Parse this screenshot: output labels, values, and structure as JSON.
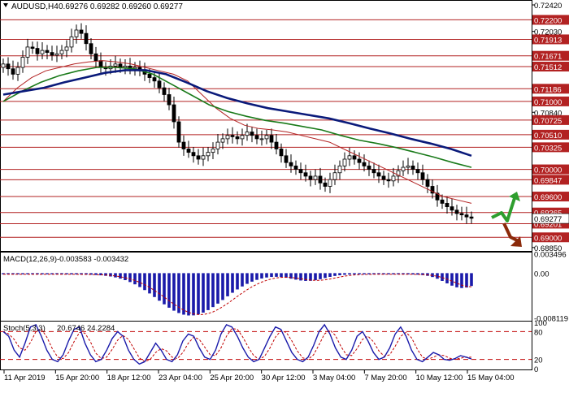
{
  "header": {
    "symbol": "AUDUSD,H4",
    "ohlc": "0.69276 0.69282 0.69260 0.69277"
  },
  "chart_data": [
    {
      "type": "candlestick",
      "title": "AUDUSD,H4",
      "ylim": [
        0.688,
        0.7248
      ],
      "tick_labels": [
        "0.72420",
        "0.72200",
        "0.72030",
        "0.71913",
        "0.71671",
        "0.71512",
        "0.71186",
        "0.71000",
        "0.70840",
        "0.70725",
        "0.70510",
        "0.70325",
        "0.70000",
        "0.69847",
        "0.69600",
        "0.69365",
        "0.69201",
        "0.68850"
      ],
      "levels": [
        0.722,
        0.71913,
        0.71671,
        0.71512,
        0.71186,
        0.71,
        0.70725,
        0.7051,
        0.70325,
        0.7,
        0.69847,
        0.696,
        0.69365,
        0.69201,
        0.69
      ],
      "level_labels": [
        "0.72200",
        "0.71913",
        "0.71671",
        "0.71512",
        "0.71186",
        "0.71000",
        "0.70725",
        "0.70510",
        "0.70325",
        "0.70000",
        "0.69847",
        "0.69600",
        "0.69365",
        "0.69201",
        "0.69000"
      ],
      "current_price": 0.69277,
      "current_price_label": "0.69277",
      "x_labels": [
        "11 Apr 2019",
        "15 Apr 20:00",
        "18 Apr 12:00",
        "23 Apr 04:00",
        "25 Apr 20:00",
        "30 Apr 12:00",
        "3 May 04:00",
        "7 May 20:00",
        "10 May 12:00",
        "15 May 04:00"
      ],
      "closes": [
        0.7155,
        0.7148,
        0.714,
        0.715,
        0.7165,
        0.718,
        0.7178,
        0.717,
        0.7175,
        0.7172,
        0.7168,
        0.717,
        0.7175,
        0.718,
        0.7195,
        0.7205,
        0.72,
        0.7185,
        0.717,
        0.716,
        0.715,
        0.7148,
        0.7152,
        0.7155,
        0.715,
        0.7152,
        0.7148,
        0.715,
        0.7145,
        0.714,
        0.7135,
        0.713,
        0.712,
        0.711,
        0.7095,
        0.707,
        0.704,
        0.703,
        0.7025,
        0.702,
        0.7015,
        0.702,
        0.7025,
        0.703,
        0.704,
        0.7045,
        0.705,
        0.7048,
        0.7045,
        0.705,
        0.7055,
        0.705,
        0.7045,
        0.7045,
        0.705,
        0.704,
        0.703,
        0.702,
        0.701,
        0.7005,
        0.7,
        0.6995,
        0.699,
        0.6985,
        0.699,
        0.698,
        0.6975,
        0.6985,
        0.6995,
        0.7005,
        0.7015,
        0.702,
        0.7015,
        0.701,
        0.7005,
        0.7,
        0.6995,
        0.699,
        0.6985,
        0.6983,
        0.699,
        0.6998,
        0.7003,
        0.7005,
        0.7,
        0.6995,
        0.6985,
        0.6975,
        0.6965,
        0.6955,
        0.695,
        0.6945,
        0.694,
        0.6935,
        0.6933,
        0.693,
        0.6928
      ],
      "series": [
        {
          "name": "",
          "color": "#b22222",
          "values": [
            0.71,
            0.712,
            0.7135,
            0.7145,
            0.715,
            0.7155,
            0.7158,
            0.716,
            0.7158,
            0.7155,
            0.715,
            0.7145,
            0.714,
            0.713,
            0.711,
            0.709,
            0.7075,
            0.7065,
            0.706,
            0.7058,
            0.7055,
            0.705,
            0.7045,
            0.704,
            0.703,
            0.702,
            0.701,
            0.7,
            0.699,
            0.698,
            0.697,
            0.696,
            0.6955,
            0.695
          ]
        },
        {
          "name": "",
          "color": "#1a7a1a",
          "values": [
            0.71,
            0.7115,
            0.7128,
            0.7138,
            0.7145,
            0.715,
            0.715,
            0.7148,
            0.714,
            0.7125,
            0.711,
            0.7095,
            0.7085,
            0.7078,
            0.7072,
            0.7068,
            0.7063,
            0.7058,
            0.705,
            0.7043,
            0.7038,
            0.7032,
            0.7025,
            0.7018,
            0.701,
            0.7003
          ]
        },
        {
          "name": "",
          "color": "#0a1a7a",
          "values": [
            0.711,
            0.7115,
            0.712,
            0.7128,
            0.7135,
            0.7142,
            0.7146,
            0.7146,
            0.714,
            0.7128,
            0.7115,
            0.7105,
            0.7097,
            0.709,
            0.7085,
            0.708,
            0.7075,
            0.7068,
            0.706,
            0.7053,
            0.7045,
            0.7038,
            0.703,
            0.702
          ]
        }
      ]
    },
    {
      "type": "bar",
      "title": "MACD(12,26,9)",
      "values_label": "-0.003583 -0.003432",
      "tick_labels": [
        "0.003496",
        "0.00",
        "-0.008119"
      ],
      "ylim": [
        -0.0085,
        0.0036
      ],
      "bar_color": "#1a1aaa"
    },
    {
      "type": "line",
      "title": "Stoch(5,3,3)",
      "values_label": "20.6746 24.2284",
      "tick_labels": [
        "100",
        "80",
        "20",
        "0"
      ],
      "ylim": [
        0,
        100
      ],
      "levels": [
        80,
        20
      ],
      "k_values": [
        80,
        70,
        40,
        25,
        55,
        90,
        95,
        70,
        40,
        20,
        15,
        30,
        60,
        85,
        90,
        55,
        30,
        15,
        20,
        40,
        65,
        80,
        70,
        40,
        20,
        10,
        15,
        35,
        55,
        40,
        20,
        15,
        30,
        60,
        75,
        70,
        45,
        25,
        20,
        40,
        75,
        95,
        90,
        70,
        45,
        25,
        15,
        20,
        45,
        70,
        90,
        85,
        60,
        35,
        20,
        15,
        25,
        50,
        80,
        95,
        75,
        45,
        25,
        20,
        40,
        70,
        80,
        60,
        35,
        20,
        25,
        45,
        75,
        90,
        70,
        40,
        20,
        15,
        25,
        35,
        30,
        20,
        18,
        22,
        28,
        25,
        21
      ]
    }
  ]
}
